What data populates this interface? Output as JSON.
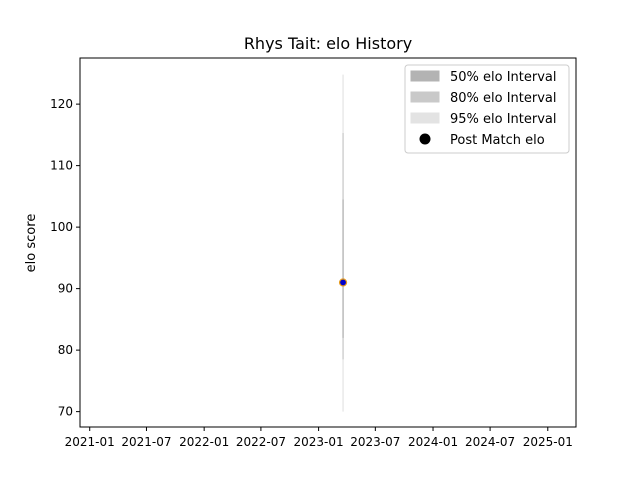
{
  "chart_data": {
    "type": "scatter",
    "title": "Rhys Tait: elo History",
    "xlabel": "",
    "ylabel": "elo score",
    "x_ticks": [
      "2021-01",
      "2021-07",
      "2022-01",
      "2022-07",
      "2023-01",
      "2023-07",
      "2024-01",
      "2024-07",
      "2025-01"
    ],
    "y_ticks": [
      "70",
      "80",
      "90",
      "100",
      "110",
      "120"
    ],
    "xlim": [
      "2020-12-01",
      "2025-04-01"
    ],
    "ylim": [
      67.5,
      127.5
    ],
    "grid": false,
    "legend_position": "top-right",
    "legend": [
      {
        "label": "50% elo Interval",
        "color": "#b3b3b3",
        "kind": "patch"
      },
      {
        "label": "80% elo Interval",
        "color": "#c9c9c9",
        "kind": "patch"
      },
      {
        "label": "95% elo Interval",
        "color": "#e3e3e3",
        "kind": "patch"
      },
      {
        "label": "Post Match elo",
        "color": "#000000",
        "kind": "marker"
      }
    ],
    "intervals": [
      {
        "name": "95% elo Interval",
        "date": "2023-03-20",
        "low": 70.0,
        "high": 124.8,
        "color": "#e3e3e3"
      },
      {
        "name": "80% elo Interval",
        "date": "2023-03-20",
        "low": 78.5,
        "high": 115.3,
        "color": "#c9c9c9"
      },
      {
        "name": "50% elo Interval",
        "date": "2023-03-20",
        "low": 82.0,
        "high": 104.5,
        "color": "#b3b3b3"
      }
    ],
    "points": [
      {
        "date": "2023-03-20",
        "elo": 91.0
      }
    ],
    "point_fill": "#0000cc",
    "point_edge": "#e69a1a"
  }
}
